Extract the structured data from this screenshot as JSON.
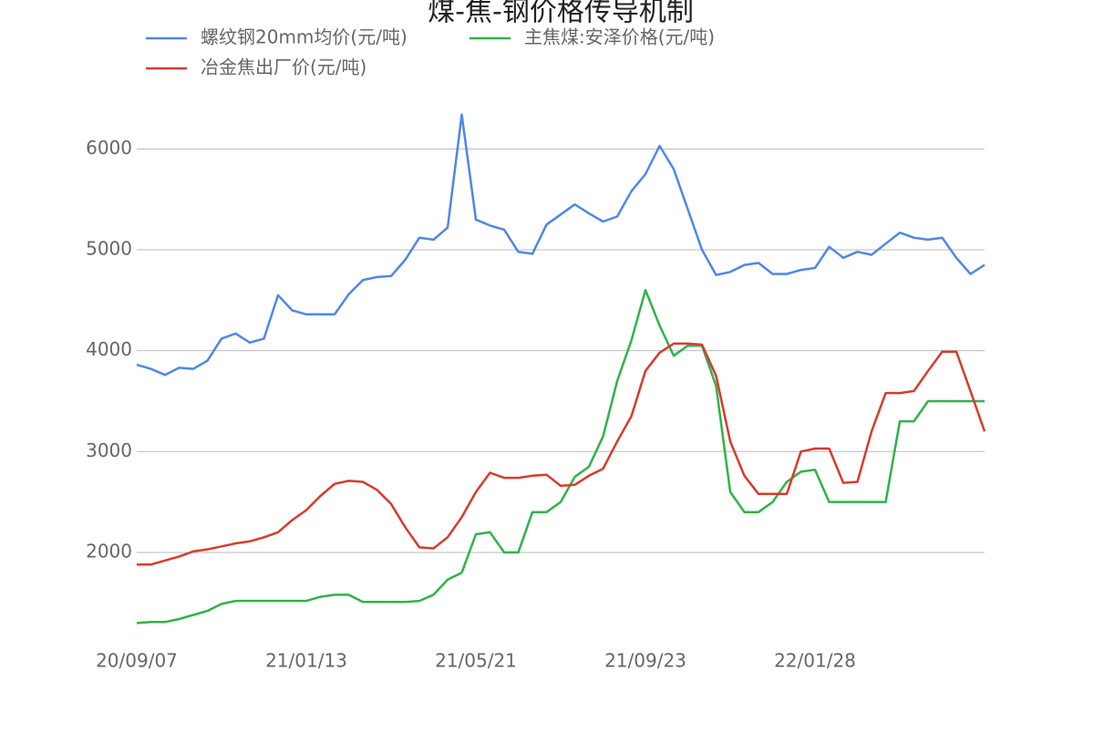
{
  "chart_data": {
    "type": "line",
    "title": "煤-焦-钢价格传导机制",
    "categories": [
      "20/09/07",
      null,
      null,
      null,
      null,
      null,
      null,
      null,
      null,
      null,
      null,
      null,
      "21/01/13",
      null,
      null,
      null,
      null,
      null,
      null,
      null,
      null,
      null,
      null,
      null,
      "21/05/21",
      null,
      null,
      null,
      null,
      null,
      null,
      null,
      null,
      null,
      null,
      null,
      "21/09/23",
      null,
      null,
      null,
      null,
      null,
      null,
      null,
      null,
      null,
      null,
      null,
      "22/01/28",
      null,
      null,
      null,
      null,
      null,
      null,
      null,
      null,
      null,
      null,
      null,
      null
    ],
    "series": [
      {
        "name": "螺纹钢20mm均价(元/吨)",
        "color": "#4f86ec",
        "values": [
          3860,
          3820,
          3760,
          3830,
          3820,
          3900,
          4120,
          4170,
          4080,
          4120,
          4550,
          4400,
          4360,
          4360,
          4360,
          4560,
          4700,
          4730,
          4740,
          4900,
          5120,
          5100,
          5220,
          6340,
          5300,
          5240,
          5200,
          4980,
          4960,
          5250,
          5350,
          5450,
          5360,
          5280,
          5330,
          5580,
          5750,
          6030,
          5800,
          5400,
          5000,
          4750,
          4780,
          4850,
          4870,
          4760,
          4760,
          4800,
          4820,
          5030,
          4920,
          4980,
          4950,
          5060,
          5170,
          5120,
          5100,
          5120,
          4920,
          4760,
          4850
        ]
      },
      {
        "name": "主焦煤:安泽价格(元/吨)",
        "color": "#2fb34a",
        "values": [
          1300,
          1310,
          1310,
          1340,
          1380,
          1420,
          1490,
          1520,
          1520,
          1520,
          1520,
          1520,
          1520,
          1560,
          1580,
          1580,
          1510,
          1510,
          1510,
          1510,
          1520,
          1580,
          1730,
          1800,
          2180,
          2200,
          2000,
          2000,
          2400,
          2400,
          2500,
          2750,
          2850,
          3150,
          3700,
          4100,
          4600,
          4250,
          3950,
          4050,
          4050,
          3650,
          2600,
          2400,
          2400,
          2500,
          2700,
          2800,
          2820,
          2500,
          2500,
          2500,
          2500,
          2500,
          3300,
          3300,
          3500,
          3500,
          3500,
          3500,
          3500
        ]
      },
      {
        "name": "冶金焦出厂价(元/吨)",
        "color": "#d93a2e",
        "values": [
          1880,
          1880,
          1920,
          1960,
          2010,
          2030,
          2060,
          2090,
          2110,
          2150,
          2200,
          2320,
          2420,
          2560,
          2680,
          2710,
          2700,
          2620,
          2480,
          2250,
          2050,
          2040,
          2150,
          2350,
          2600,
          2790,
          2740,
          2740,
          2760,
          2770,
          2660,
          2670,
          2760,
          2830,
          3100,
          3350,
          3800,
          3980,
          4070,
          4070,
          4060,
          3750,
          3100,
          2760,
          2580,
          2580,
          2580,
          3000,
          3030,
          3030,
          2690,
          2700,
          3200,
          3580,
          3580,
          3600,
          3800,
          3990,
          3990,
          3600,
          3200
        ]
      }
    ],
    "ylim": [
      1150,
      6500
    ],
    "yticks": [
      2000,
      3000,
      4000,
      5000,
      6000
    ],
    "grid": true
  }
}
